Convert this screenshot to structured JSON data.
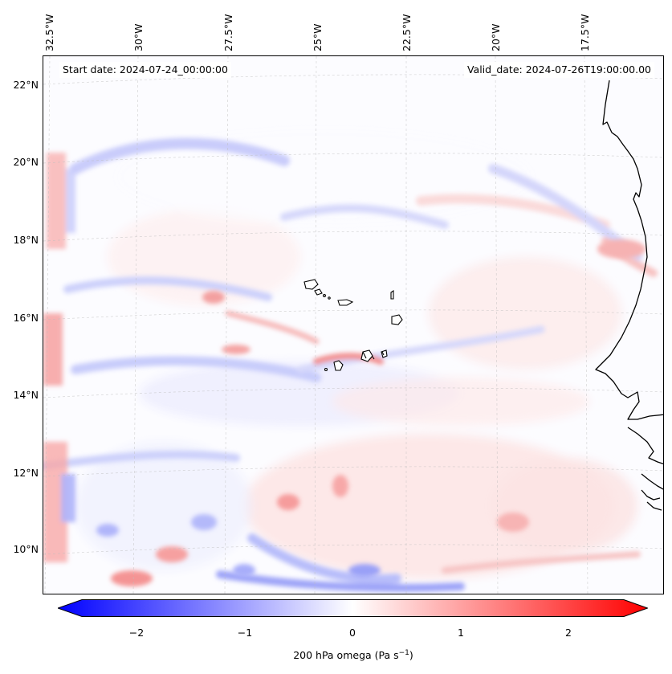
{
  "header": {
    "start_date": "Start date: 2024-07-24_00:00:00",
    "valid_date": "Valid_date: 2024-07-26T19:00:00.00"
  },
  "longitude_labels": [
    "32.5°W",
    "30°W",
    "27.5°W",
    "25°W",
    "22.5°W",
    "20°W",
    "17.5°W"
  ],
  "latitude_labels": [
    "22°N",
    "20°N",
    "18°N",
    "16°N",
    "14°N",
    "12°N",
    "10°N"
  ],
  "colorbar": {
    "ticks": [
      "−2",
      "−1",
      "0",
      "1",
      "2"
    ],
    "label_text": "200 hPa omega (Pa s",
    "label_exponent": "−1",
    "label_close": ")",
    "min_color": "#0000ff",
    "mid_color": "#ffffff",
    "max_color": "#ff0000"
  },
  "map": {
    "field": "200 hPa omega",
    "colormap": "bwr",
    "value_range": [
      -2.5,
      2.5
    ],
    "coastline_color": "#000000",
    "gridlines": true
  }
}
